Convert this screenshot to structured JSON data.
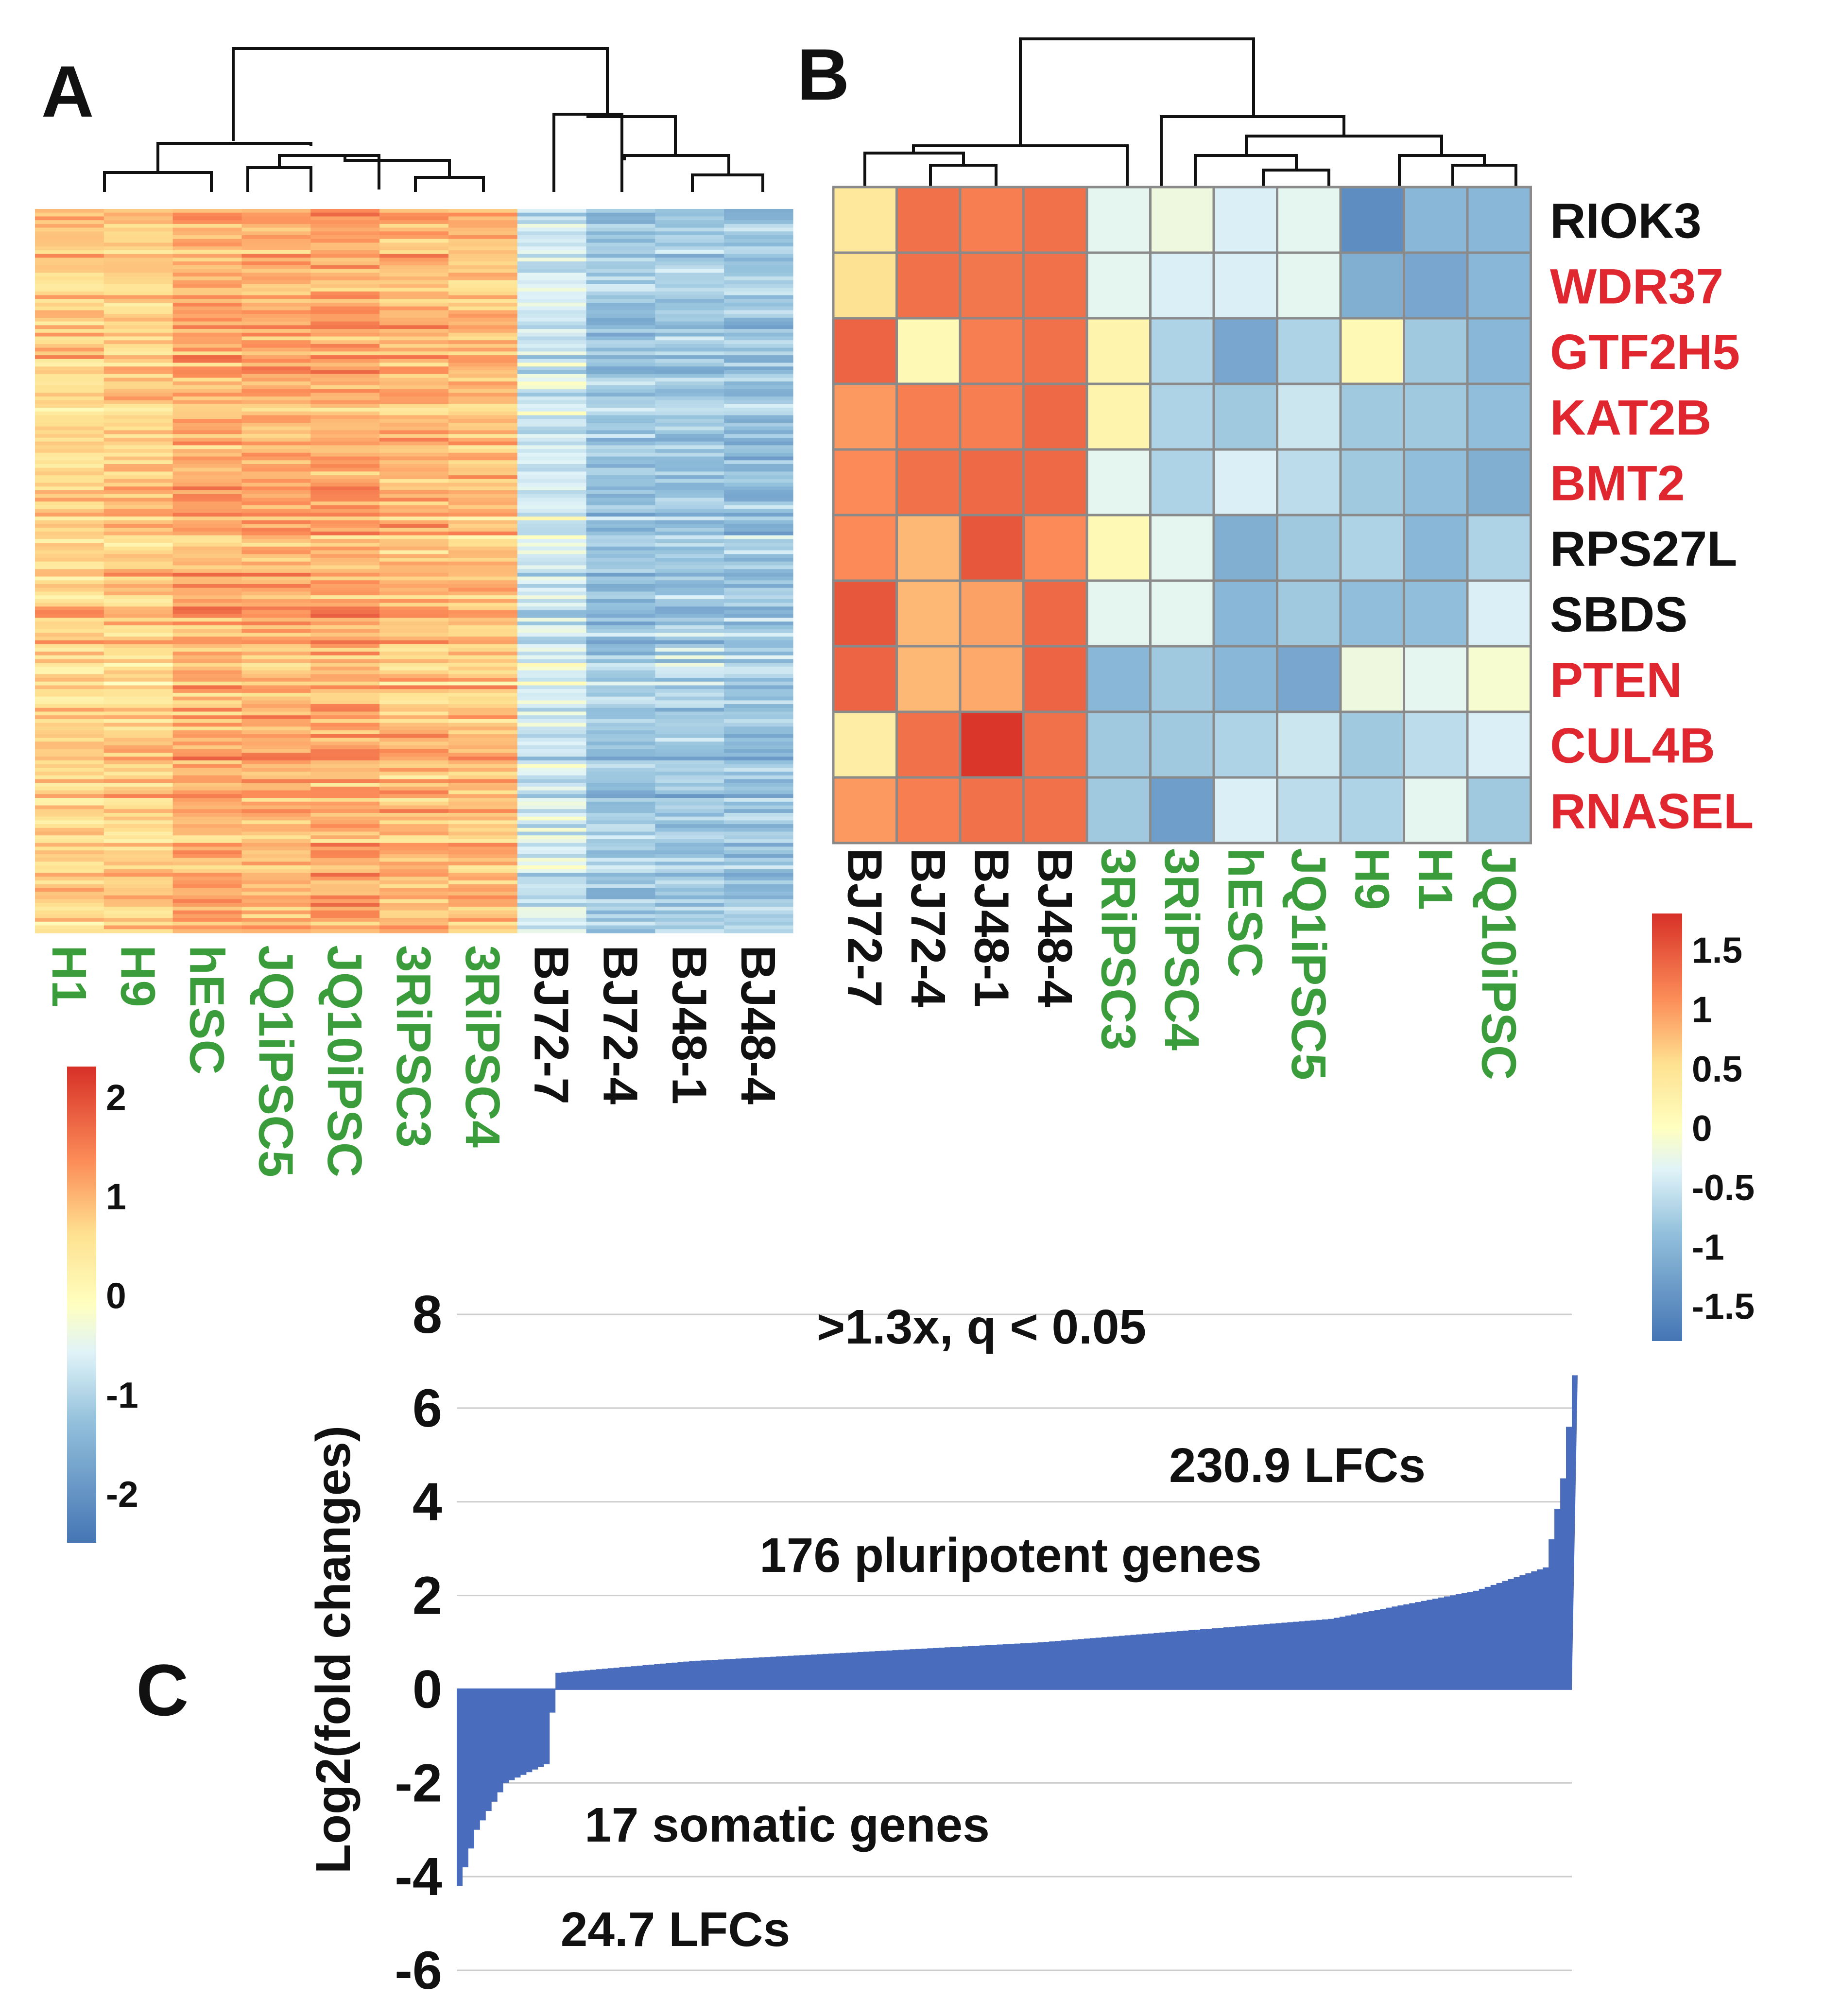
{
  "colors": {
    "green": "#3a9c3a",
    "black": "#111111",
    "red": "#e0262e",
    "area": "#4a6cbd",
    "grid": "#cccccc",
    "cellBorder": "#8a8a8a",
    "heat_low": "#4575b4",
    "heat_mid": "#ffffbf",
    "heat_high": "#d73027"
  },
  "panel_a": {
    "letter": "A",
    "columns": [
      {
        "label": "H1",
        "group": "green"
      },
      {
        "label": "H9",
        "group": "green"
      },
      {
        "label": "hESC",
        "group": "green"
      },
      {
        "label": "JQ1iPSC5",
        "group": "green"
      },
      {
        "label": "JQ10iPSC",
        "group": "green"
      },
      {
        "label": "3RiPSC3",
        "group": "green"
      },
      {
        "label": "3RiPSC4",
        "group": "green"
      },
      {
        "label": "BJ72-7",
        "group": "black"
      },
      {
        "label": "BJ72-4",
        "group": "black"
      },
      {
        "label": "BJ48-1",
        "group": "black"
      },
      {
        "label": "BJ48-4",
        "group": "black"
      }
    ],
    "row_count": 193,
    "column_means": [
      0.7,
      0.75,
      1.05,
      1.0,
      1.1,
      0.95,
      0.9,
      -0.7,
      -1.2,
      -1.15,
      -1.2
    ],
    "legend": {
      "ticks": [
        2,
        1,
        0,
        -1,
        -2
      ],
      "min": -2.5,
      "max": 2.3
    }
  },
  "panel_b": {
    "letter": "B",
    "columns": [
      {
        "label": "BJ72-7",
        "group": "black"
      },
      {
        "label": "BJ72-4",
        "group": "black"
      },
      {
        "label": "BJ48-1",
        "group": "black"
      },
      {
        "label": "BJ48-4",
        "group": "black"
      },
      {
        "label": "3RiPSC3",
        "group": "green"
      },
      {
        "label": "3RiPSC4",
        "group": "green"
      },
      {
        "label": "hESC",
        "group": "green"
      },
      {
        "label": "JQ1iPSC5",
        "group": "green"
      },
      {
        "label": "H9",
        "group": "green"
      },
      {
        "label": "H1",
        "group": "green"
      },
      {
        "label": "JQ10iPSC",
        "group": "green"
      }
    ],
    "rows": [
      {
        "gene": "RIOK3",
        "group": "black"
      },
      {
        "gene": "WDR37",
        "group": "red"
      },
      {
        "gene": "GTF2H5",
        "group": "red"
      },
      {
        "gene": "KAT2B",
        "group": "red"
      },
      {
        "gene": "BMT2",
        "group": "red"
      },
      {
        "gene": "RPS27L",
        "group": "black"
      },
      {
        "gene": "SBDS",
        "group": "black"
      },
      {
        "gene": "PTEN",
        "group": "red"
      },
      {
        "gene": "CUL4B",
        "group": "red"
      },
      {
        "gene": "RNASEL",
        "group": "red"
      }
    ],
    "values": [
      [
        0.4,
        1.3,
        1.2,
        1.3,
        -0.3,
        -0.2,
        -0.4,
        -0.3,
        -1.5,
        -1.0,
        -1.0
      ],
      [
        0.5,
        1.3,
        1.25,
        1.3,
        -0.3,
        -0.4,
        -0.4,
        -0.3,
        -1.1,
        -1.2,
        -1.0
      ],
      [
        1.4,
        0.1,
        1.2,
        1.3,
        0.2,
        -0.7,
        -1.2,
        -0.7,
        0.1,
        -0.8,
        -1.0
      ],
      [
        1.0,
        1.2,
        1.2,
        1.35,
        0.2,
        -0.7,
        -0.8,
        -0.5,
        -0.8,
        -0.8,
        -0.9
      ],
      [
        1.1,
        1.3,
        1.35,
        1.35,
        -0.3,
        -0.7,
        -0.4,
        -0.6,
        -0.8,
        -0.9,
        -1.1
      ],
      [
        1.1,
        0.8,
        1.5,
        1.1,
        0.1,
        -0.3,
        -1.1,
        -0.8,
        -0.7,
        -1.0,
        -0.7
      ],
      [
        1.5,
        0.8,
        0.95,
        1.35,
        -0.3,
        -0.3,
        -1.0,
        -0.8,
        -0.9,
        -0.9,
        -0.4
      ],
      [
        1.4,
        0.8,
        0.9,
        1.4,
        -1.0,
        -0.8,
        -1.0,
        -1.2,
        -0.2,
        -0.3,
        -0.1
      ],
      [
        0.3,
        1.3,
        1.75,
        1.3,
        -0.8,
        -0.8,
        -0.7,
        -0.5,
        -0.8,
        -0.6,
        -0.4
      ],
      [
        1.0,
        1.2,
        1.3,
        1.3,
        -0.8,
        -1.3,
        -0.4,
        -0.6,
        -0.7,
        -0.3,
        -0.8
      ]
    ],
    "legend": {
      "ticks": [
        1.5,
        1,
        0.5,
        0,
        -0.5,
        -1,
        -1.5
      ],
      "tick_labels": [
        "1.5",
        "1",
        "0.5",
        "0",
        "-0.5",
        "-1",
        "-1.5"
      ],
      "min": -1.8,
      "max": 1.8
    }
  },
  "panel_c": {
    "letter": "C",
    "ylabel": "Log2(fold changes)",
    "yticks": [
      8,
      6,
      4,
      2,
      0,
      -2,
      -4,
      -6
    ],
    "ylim": [
      -6,
      8
    ],
    "annotations": {
      "criteria": ">1.3x, q < 0.05",
      "pos_lfc": "230.9 LFCs",
      "pos_genes": "176 pluripotent genes",
      "neg_genes": "17 somatic genes",
      "neg_lfc": "24.7 LFCs"
    }
  },
  "chart_data": [
    {
      "type": "heatmap",
      "panel": "A",
      "columns": [
        "H1",
        "H9",
        "hESC",
        "JQ1iPSC5",
        "JQ10iPSC",
        "3RiPSC3",
        "3RiPSC4",
        "BJ72-7",
        "BJ72-4",
        "BJ48-1",
        "BJ48-4"
      ],
      "value_range": [
        -2.5,
        2.3
      ]
    },
    {
      "type": "heatmap",
      "panel": "B",
      "rows": [
        "RIOK3",
        "WDR37",
        "GTF2H5",
        "KAT2B",
        "BMT2",
        "RPS27L",
        "SBDS",
        "PTEN",
        "CUL4B",
        "RNASEL"
      ],
      "columns": [
        "BJ72-7",
        "BJ72-4",
        "BJ48-1",
        "BJ48-4",
        "3RiPSC3",
        "3RiPSC4",
        "hESC",
        "JQ1iPSC5",
        "H9",
        "H1",
        "JQ10iPSC"
      ],
      "value_range": [
        -1.8,
        1.8
      ]
    },
    {
      "type": "area",
      "panel": "C",
      "ylabel": "Log2(fold changes)",
      "ylim": [
        -6,
        8
      ],
      "yticks": [
        8,
        6,
        4,
        2,
        0,
        -2,
        -4,
        -6
      ],
      "n_points": 193,
      "neg_count": 17,
      "pos_count": 176,
      "sorted_values_anchors": [
        [
          0,
          -4.2
        ],
        [
          3,
          -3.0
        ],
        [
          8,
          -2.0
        ],
        [
          15,
          -1.6
        ],
        [
          16,
          -0.5
        ],
        [
          17,
          0.35
        ],
        [
          40,
          0.6
        ],
        [
          100,
          1.0
        ],
        [
          150,
          1.5
        ],
        [
          175,
          2.1
        ],
        [
          187,
          2.6
        ],
        [
          188,
          3.2
        ],
        [
          190,
          4.5
        ],
        [
          192,
          6.7
        ]
      ]
    }
  ]
}
